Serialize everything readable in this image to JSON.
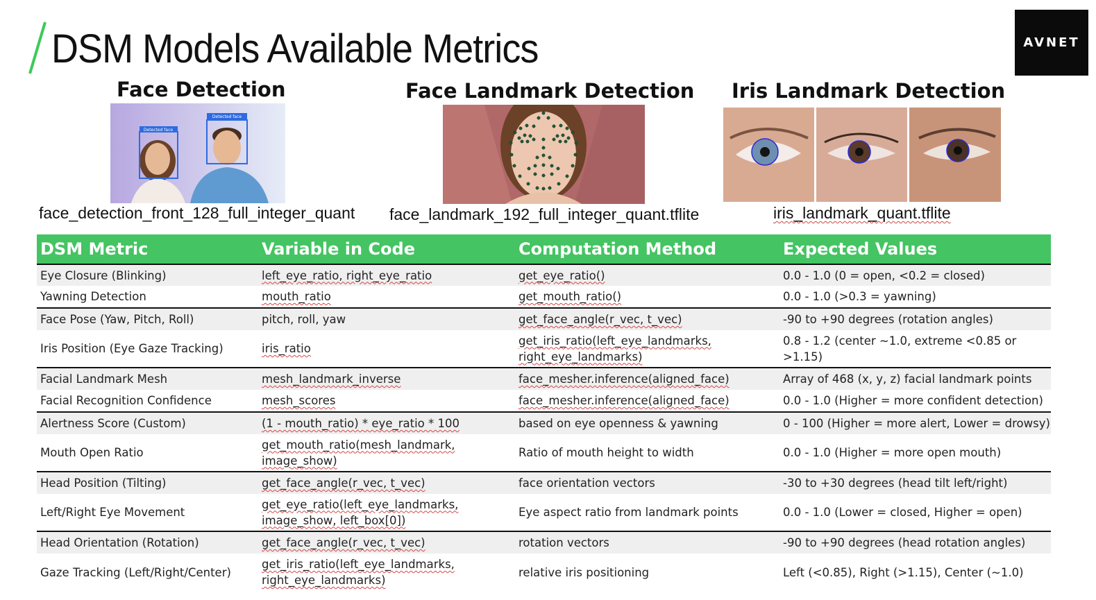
{
  "slide": {
    "title": "DSM Models Available Metrics",
    "accent_color": "#3cc95a"
  },
  "logo": {
    "text": "AVNET",
    "background": "#0b0b0b"
  },
  "models": [
    {
      "heading": "Face Detection",
      "file": "face_detection_front_128_full_integer_quant",
      "image": {
        "box_labels": [
          "Detected face",
          "Detected face"
        ]
      }
    },
    {
      "heading": "Face Landmark Detection",
      "file": "face_landmark_192_full_integer_quant.tflite"
    },
    {
      "heading": "Iris Landmark Detection",
      "file": "iris_landmark_quant.tflite"
    }
  ],
  "table": {
    "header_color": "#44c462",
    "headers": [
      "DSM Metric",
      "Variable in Code",
      "Computation Method",
      "Expected Values"
    ],
    "rows": [
      {
        "metric": "Eye Closure (Blinking)",
        "variable": "left_eye_ratio, right_eye_ratio",
        "method": "get_eye_ratio()",
        "expected": "0.0 - 1.0 (0 = open, <0.2 = closed)"
      },
      {
        "metric": "Yawning Detection",
        "variable": "mouth_ratio",
        "method": "get_mouth_ratio()",
        "expected": "0.0 - 1.0 (>0.3 = yawning)"
      },
      {
        "metric": "Face Pose (Yaw, Pitch, Roll)",
        "variable": "pitch, roll, yaw",
        "method": "get_face_angle(r_vec, t_vec)",
        "expected": "-90 to +90 degrees (rotation angles)"
      },
      {
        "metric": "Iris Position (Eye Gaze Tracking)",
        "variable": "iris_ratio",
        "method": "get_iris_ratio(left_eye_landmarks, right_eye_landmarks)",
        "expected": "0.8 - 1.2 (center ~1.0, extreme <0.85 or >1.15)"
      },
      {
        "metric": "Facial Landmark Mesh",
        "variable": "mesh_landmark_inverse",
        "method": "face_mesher.inference(aligned_face)",
        "expected": "Array of 468 (x, y, z) facial landmark points"
      },
      {
        "metric": "Facial Recognition Confidence",
        "variable": "mesh_scores",
        "method": "face_mesher.inference(aligned_face)",
        "expected": "0.0 - 1.0 (Higher = more confident detection)"
      },
      {
        "metric": "Alertness Score (Custom)",
        "variable": "(1 - mouth_ratio) * eye_ratio * 100",
        "method": "based on eye openness & yawning",
        "expected": "0 - 100 (Higher = more alert, Lower = drowsy)"
      },
      {
        "metric": "Mouth Open Ratio",
        "variable": "get_mouth_ratio(mesh_landmark, image_show)",
        "method": "Ratio of mouth height to width",
        "expected": "0.0 - 1.0 (Higher = more open mouth)"
      },
      {
        "metric": "Head Position (Tilting)",
        "variable": "get_face_angle(r_vec, t_vec)",
        "method": "face orientation vectors",
        "expected": "-30 to +30 degrees (head tilt left/right)"
      },
      {
        "metric": "Left/Right Eye Movement",
        "variable": "get_eye_ratio(left_eye_landmarks, image_show, left_box[0])",
        "method": "Eye aspect ratio from landmark points",
        "expected": "0.0 - 1.0 (Lower = closed, Higher = open)"
      },
      {
        "metric": "Head Orientation (Rotation)",
        "variable": "get_face_angle(r_vec, t_vec)",
        "method": "rotation vectors",
        "expected": "-90 to +90 degrees (head rotation angles)"
      },
      {
        "metric": "Gaze Tracking (Left/Right/Center)",
        "variable": "get_iris_ratio(left_eye_landmarks, right_eye_landmarks)",
        "method": "relative iris positioning",
        "expected": "Left (<0.85), Right (>1.15), Center (~1.0)"
      }
    ]
  }
}
